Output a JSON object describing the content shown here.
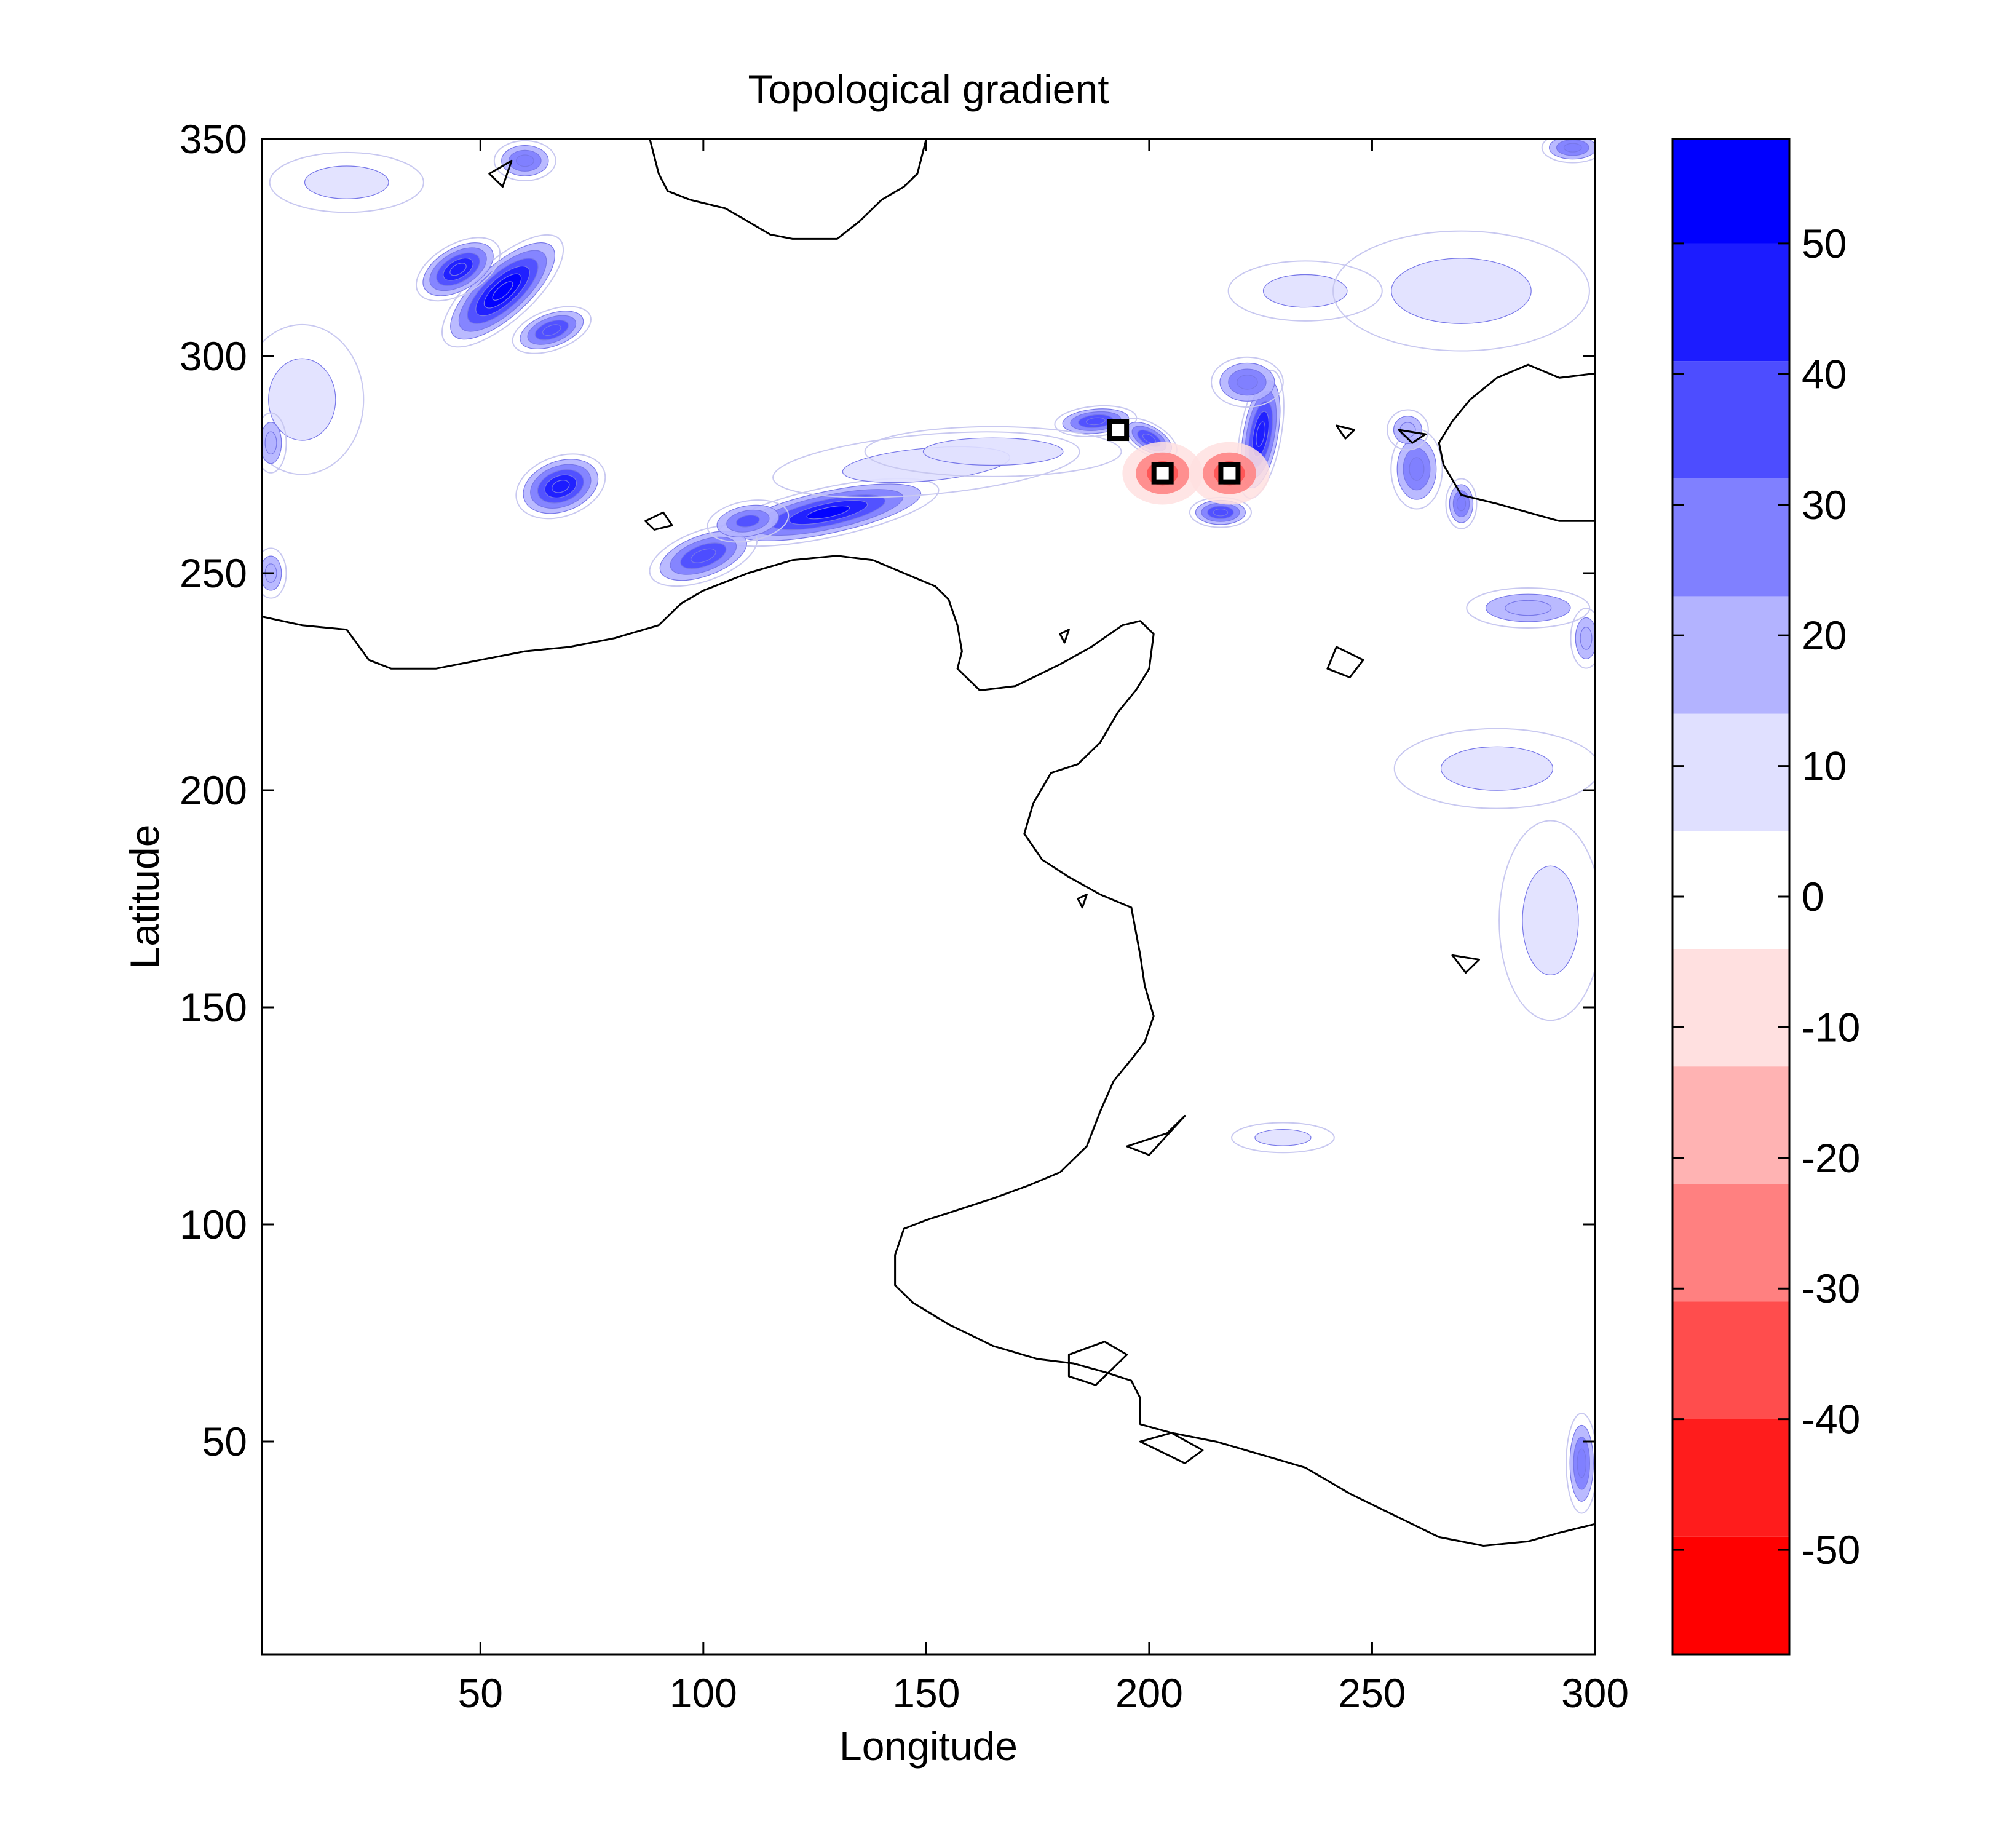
{
  "chart_data": {
    "type": "heatmap",
    "title": "Topological gradient",
    "xlabel": "Longitude",
    "ylabel": "Latitude",
    "xlim": [
      1,
      300
    ],
    "ylim": [
      1,
      350
    ],
    "xticks": [
      50,
      100,
      150,
      200,
      250,
      300
    ],
    "xtick_labels": [
      "50",
      "100",
      "150",
      "200",
      "250",
      "300"
    ],
    "yticks": [
      50,
      100,
      150,
      200,
      250,
      300,
      350
    ],
    "ytick_labels": [
      "50",
      "100",
      "150",
      "200",
      "250",
      "300",
      "350"
    ],
    "grid": false,
    "colorbar": {
      "range": [
        -58,
        58
      ],
      "levels": [
        -58,
        -49,
        -40,
        -31,
        -22,
        -13,
        -4,
        5,
        14,
        23,
        32,
        41,
        50,
        58
      ],
      "colors": [
        "#ff0000",
        "#ff1c1c",
        "#ff4d4d",
        "#ff8080",
        "#ffb3b3",
        "#ffe0e0",
        "#ffffff",
        "#e0e0ff",
        "#b3b3ff",
        "#8080ff",
        "#4d4dff",
        "#1c1cff",
        "#0000ff"
      ],
      "ticks": [
        50,
        40,
        30,
        20,
        10,
        0,
        -10,
        -20,
        -30,
        -40,
        -50
      ],
      "tick_labels": [
        "50",
        "40",
        "30",
        "20",
        "10",
        "0",
        "-10",
        "-20",
        "-30",
        "-40",
        "-50"
      ]
    },
    "gradient_blobs": [
      {
        "lon": 55,
        "lat": 315,
        "rx": 15,
        "ry": 6,
        "rot": 42,
        "value": 56
      },
      {
        "lon": 45,
        "lat": 320,
        "rx": 9,
        "ry": 5,
        "rot": 30,
        "value": 45
      },
      {
        "lon": 66,
        "lat": 306,
        "rx": 8,
        "ry": 4,
        "rot": 20,
        "value": 40
      },
      {
        "lon": 68,
        "lat": 270,
        "rx": 9,
        "ry": 6,
        "rot": 20,
        "value": 45
      },
      {
        "lon": 128,
        "lat": 264,
        "rx": 22,
        "ry": 5,
        "rot": 12,
        "value": 50
      },
      {
        "lon": 100,
        "lat": 254,
        "rx": 11,
        "ry": 5,
        "rot": 20,
        "value": 40
      },
      {
        "lon": 110,
        "lat": 262,
        "rx": 8,
        "ry": 4,
        "rot": 10,
        "value": 32
      },
      {
        "lon": 188,
        "lat": 285,
        "rx": 8,
        "ry": 3,
        "rot": 5,
        "value": 40
      },
      {
        "lon": 200,
        "lat": 281,
        "rx": 6,
        "ry": 3,
        "rot": -30,
        "value": 35
      },
      {
        "lon": 225,
        "lat": 282,
        "rx": 4,
        "ry": 13,
        "rot": -10,
        "value": 42
      },
      {
        "lon": 216,
        "lat": 264,
        "rx": 6,
        "ry": 3,
        "rot": 0,
        "value": 35
      },
      {
        "lon": 222,
        "lat": 294,
        "rx": 7,
        "ry": 5,
        "rot": 0,
        "value": 25
      },
      {
        "lon": 260,
        "lat": 274,
        "rx": 5,
        "ry": 8,
        "rot": 0,
        "value": 25
      },
      {
        "lon": 270,
        "lat": 266,
        "rx": 3,
        "ry": 5,
        "rot": 0,
        "value": 30
      },
      {
        "lon": 258,
        "lat": 283,
        "rx": 4,
        "ry": 4,
        "rot": 0,
        "value": 20
      },
      {
        "lon": 285,
        "lat": 242,
        "rx": 12,
        "ry": 4,
        "rot": 0,
        "value": 15
      },
      {
        "lon": 298,
        "lat": 235,
        "rx": 3,
        "ry": 6,
        "rot": 0,
        "value": 20
      },
      {
        "lon": 297,
        "lat": 45,
        "rx": 3,
        "ry": 10,
        "rot": 0,
        "value": 25
      },
      {
        "lon": 60,
        "lat": 345,
        "rx": 6,
        "ry": 4,
        "rot": 0,
        "value": 25
      },
      {
        "lon": 295,
        "lat": 348,
        "rx": 6,
        "ry": 3,
        "rot": 0,
        "value": 25
      },
      {
        "lon": 20,
        "lat": 340,
        "rx": 15,
        "ry": 6,
        "rot": 0,
        "value": 8
      },
      {
        "lon": 10,
        "lat": 290,
        "rx": 12,
        "ry": 15,
        "rot": 0,
        "value": 8
      },
      {
        "lon": 150,
        "lat": 275,
        "rx": 30,
        "ry": 6,
        "rot": 5,
        "value": 8
      },
      {
        "lon": 165,
        "lat": 278,
        "rx": 25,
        "ry": 5,
        "rot": 0,
        "value": 6
      },
      {
        "lon": 278,
        "lat": 205,
        "rx": 20,
        "ry": 8,
        "rot": 0,
        "value": 6
      },
      {
        "lon": 290,
        "lat": 170,
        "rx": 10,
        "ry": 20,
        "rot": 0,
        "value": 6
      },
      {
        "lon": 235,
        "lat": 315,
        "rx": 15,
        "ry": 6,
        "rot": 0,
        "value": 6
      },
      {
        "lon": 270,
        "lat": 315,
        "rx": 25,
        "ry": 12,
        "rot": 0,
        "value": 6
      },
      {
        "lon": 230,
        "lat": 120,
        "rx": 10,
        "ry": 3,
        "rot": 0,
        "value": 5
      },
      {
        "lon": 3,
        "lat": 280,
        "rx": 3,
        "ry": 6,
        "rot": 0,
        "value": 20
      },
      {
        "lon": 3,
        "lat": 250,
        "rx": 3,
        "ry": 5,
        "rot": 0,
        "value": 20
      }
    ],
    "negative_spots": [
      {
        "lon": 203,
        "lat": 273,
        "value": -30
      },
      {
        "lon": 218,
        "lat": 273,
        "value": -25
      }
    ],
    "markers": [
      {
        "lon": 193,
        "lat": 283
      },
      {
        "lon": 203,
        "lat": 273
      },
      {
        "lon": 218,
        "lat": 273
      }
    ],
    "coastline_west": [
      [
        1,
        240
      ],
      [
        10,
        238
      ],
      [
        20,
        237
      ],
      [
        25,
        230
      ],
      [
        30,
        228
      ],
      [
        40,
        228
      ],
      [
        50,
        230
      ],
      [
        60,
        232
      ],
      [
        70,
        233
      ],
      [
        80,
        235
      ],
      [
        90,
        238
      ],
      [
        95,
        243
      ],
      [
        100,
        246
      ],
      [
        110,
        250
      ],
      [
        120,
        253
      ],
      [
        130,
        254
      ],
      [
        138,
        253
      ],
      [
        145,
        250
      ],
      [
        152,
        247
      ],
      [
        155,
        244
      ],
      [
        157,
        238
      ],
      [
        158,
        232
      ],
      [
        157,
        228
      ],
      [
        162,
        223
      ],
      [
        170,
        224
      ],
      [
        180,
        229
      ],
      [
        187,
        233
      ],
      [
        194,
        238
      ],
      [
        198,
        239
      ],
      [
        201,
        236
      ],
      [
        200,
        228
      ],
      [
        197,
        223
      ],
      [
        193,
        218
      ],
      [
        189,
        211
      ],
      [
        184,
        206
      ],
      [
        178,
        204
      ],
      [
        174,
        197
      ],
      [
        172,
        190
      ],
      [
        176,
        184
      ],
      [
        182,
        180
      ],
      [
        189,
        176
      ],
      [
        196,
        173
      ],
      [
        198,
        162
      ],
      [
        199,
        155
      ],
      [
        201,
        148
      ],
      [
        199,
        142
      ],
      [
        196,
        138
      ],
      [
        192,
        133
      ],
      [
        189,
        126
      ],
      [
        186,
        118
      ],
      [
        180,
        112
      ],
      [
        173,
        109
      ],
      [
        165,
        106
      ],
      [
        156,
        103
      ],
      [
        150,
        101
      ],
      [
        145,
        99
      ],
      [
        143,
        93
      ],
      [
        143,
        86
      ],
      [
        147,
        82
      ],
      [
        155,
        77
      ],
      [
        165,
        72
      ],
      [
        175,
        69
      ],
      [
        183,
        68
      ],
      [
        190,
        66
      ],
      [
        196,
        64
      ],
      [
        198,
        60
      ],
      [
        198,
        54
      ],
      [
        205,
        52
      ],
      [
        215,
        50
      ],
      [
        225,
        47
      ],
      [
        235,
        44
      ],
      [
        245,
        38
      ],
      [
        255,
        33
      ],
      [
        265,
        28
      ],
      [
        275,
        26
      ],
      [
        285,
        27
      ],
      [
        292,
        29
      ],
      [
        300,
        31
      ]
    ],
    "coastline_north": [
      [
        88,
        350
      ],
      [
        90,
        342
      ],
      [
        92,
        338
      ],
      [
        97,
        336
      ],
      [
        105,
        334
      ],
      [
        110,
        331
      ],
      [
        115,
        328
      ],
      [
        120,
        327
      ],
      [
        125,
        327
      ],
      [
        130,
        327
      ],
      [
        135,
        331
      ],
      [
        140,
        336
      ],
      [
        145,
        339
      ],
      [
        148,
        342
      ],
      [
        150,
        350
      ]
    ],
    "coastline_east": [
      [
        300,
        296
      ],
      [
        292,
        295
      ],
      [
        285,
        298
      ],
      [
        278,
        295
      ],
      [
        272,
        290
      ],
      [
        268,
        285
      ],
      [
        265,
        280
      ],
      [
        266,
        275
      ],
      [
        270,
        268
      ],
      [
        278,
        266
      ],
      [
        285,
        264
      ],
      [
        292,
        262
      ],
      [
        300,
        262
      ]
    ],
    "islands": [
      [
        [
          52,
          342
        ],
        [
          57,
          345
        ],
        [
          55,
          339
        ],
        [
          52,
          342
        ]
      ],
      [
        [
          87,
          262
        ],
        [
          91,
          264
        ],
        [
          93,
          261
        ],
        [
          89,
          260
        ],
        [
          87,
          262
        ]
      ],
      [
        [
          242,
          233
        ],
        [
          248,
          230
        ],
        [
          245,
          226
        ],
        [
          240,
          228
        ],
        [
          242,
          233
        ]
      ],
      [
        [
          242,
          284
        ],
        [
          246,
          283
        ],
        [
          244,
          281
        ],
        [
          242,
          284
        ]
      ],
      [
        [
          256,
          283
        ],
        [
          262,
          282
        ],
        [
          259,
          280
        ],
        [
          256,
          283
        ]
      ],
      [
        [
          268,
          162
        ],
        [
          274,
          161
        ],
        [
          271,
          158
        ],
        [
          268,
          162
        ]
      ],
      [
        [
          195,
          118
        ],
        [
          204,
          121
        ],
        [
          208,
          125
        ],
        [
          200,
          116
        ],
        [
          195,
          118
        ]
      ],
      [
        [
          182,
          70
        ],
        [
          190,
          73
        ],
        [
          195,
          70
        ],
        [
          188,
          63
        ],
        [
          182,
          65
        ],
        [
          182,
          70
        ]
      ],
      [
        [
          198,
          50
        ],
        [
          208,
          45
        ],
        [
          212,
          48
        ],
        [
          205,
          52
        ],
        [
          198,
          50
        ]
      ],
      [
        [
          184,
          175
        ],
        [
          186,
          176
        ],
        [
          185,
          173
        ],
        [
          184,
          175
        ]
      ],
      [
        [
          180,
          236
        ],
        [
          182,
          237
        ],
        [
          181,
          234
        ],
        [
          180,
          236
        ]
      ]
    ]
  }
}
